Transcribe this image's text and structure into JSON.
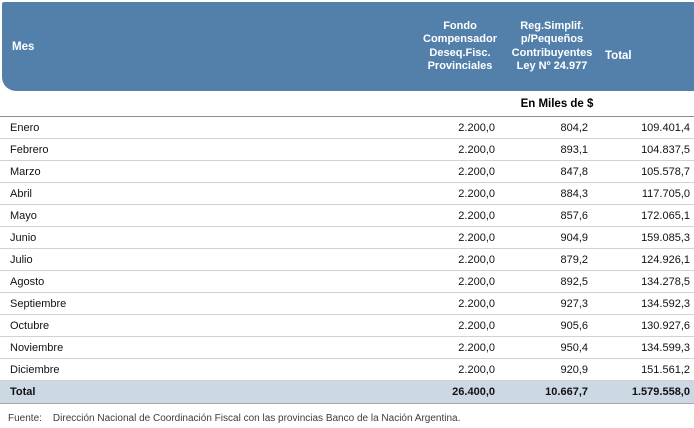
{
  "colors": {
    "header_bg": "#5380ab",
    "total_bg": "#ccd8e4"
  },
  "table": {
    "col1_header": "Mes",
    "col2_header_lines": [
      "Fondo",
      "Compensador",
      "Deseq.Fisc.",
      "Provinciales"
    ],
    "col3_header_lines": [
      "Reg.Simplif.",
      "p/Pequeños",
      "Contribuyentes",
      "Ley Nº 24.977"
    ],
    "col4_header": "Total",
    "unit_label": "En Miles de $",
    "rows": [
      {
        "month": "Enero",
        "fondo": "2.200,0",
        "reg": "804,2",
        "total": "109.401,4"
      },
      {
        "month": "Febrero",
        "fondo": "2.200,0",
        "reg": "893,1",
        "total": "104.837,5"
      },
      {
        "month": "Marzo",
        "fondo": "2.200,0",
        "reg": "847,8",
        "total": "105.578,7"
      },
      {
        "month": "Abril",
        "fondo": "2.200,0",
        "reg": "884,3",
        "total": "117.705,0"
      },
      {
        "month": "Mayo",
        "fondo": "2.200,0",
        "reg": "857,6",
        "total": "172.065,1"
      },
      {
        "month": "Junio",
        "fondo": "2.200,0",
        "reg": "904,9",
        "total": "159.085,3"
      },
      {
        "month": "Julio",
        "fondo": "2.200,0",
        "reg": "879,2",
        "total": "124.926,1"
      },
      {
        "month": "Agosto",
        "fondo": "2.200,0",
        "reg": "892,5",
        "total": "134.278,5"
      },
      {
        "month": "Septiembre",
        "fondo": "2.200,0",
        "reg": "927,3",
        "total": "134.592,3"
      },
      {
        "month": "Octubre",
        "fondo": "2.200,0",
        "reg": "905,6",
        "total": "130.927,6"
      },
      {
        "month": "Noviembre",
        "fondo": "2.200,0",
        "reg": "950,4",
        "total": "134.599,3"
      },
      {
        "month": "Diciembre",
        "fondo": "2.200,0",
        "reg": "920,9",
        "total": "151.561,2"
      }
    ],
    "total_row": {
      "label": "Total",
      "fondo": "26.400,0",
      "reg": "10.667,7",
      "total": "1.579.558,0"
    }
  },
  "footer": {
    "label": "Fuente:",
    "text": "Dirección Nacional de Coordinación Fiscal con las provincias Banco de la Nación Argentina."
  },
  "chart_data": {
    "type": "table",
    "title": "",
    "unit": "En Miles de $",
    "columns": [
      "Mes",
      "Fondo Compensador Deseq.Fisc. Provinciales",
      "Reg.Simplif. p/Pequeños Contribuyentes Ley Nº 24.977",
      "Total"
    ],
    "rows": [
      [
        "Enero",
        2200.0,
        804.2,
        109401.4
      ],
      [
        "Febrero",
        2200.0,
        893.1,
        104837.5
      ],
      [
        "Marzo",
        2200.0,
        847.8,
        105578.7
      ],
      [
        "Abril",
        2200.0,
        884.3,
        117705.0
      ],
      [
        "Mayo",
        2200.0,
        857.6,
        172065.1
      ],
      [
        "Junio",
        2200.0,
        904.9,
        159085.3
      ],
      [
        "Julio",
        2200.0,
        879.2,
        124926.1
      ],
      [
        "Agosto",
        2200.0,
        892.5,
        134278.5
      ],
      [
        "Septiembre",
        2200.0,
        927.3,
        134592.3
      ],
      [
        "Octubre",
        2200.0,
        905.6,
        130927.6
      ],
      [
        "Noviembre",
        2200.0,
        950.4,
        134599.3
      ],
      [
        "Diciembre",
        2200.0,
        920.9,
        151561.2
      ],
      [
        "Total",
        26400.0,
        10667.7,
        1579558.0
      ]
    ],
    "source": "Fuente: Dirección Nacional de Coordinación Fiscal con las provincias Banco de la Nación Argentina."
  }
}
